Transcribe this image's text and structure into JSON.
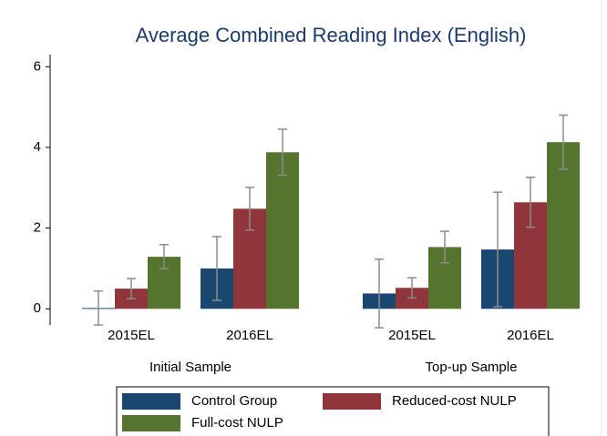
{
  "chart_data": {
    "type": "bar",
    "title": "Average Combined Reading Index (English)",
    "groups": [
      {
        "name": "Initial Sample",
        "categories": [
          "2015EL",
          "2016EL"
        ]
      },
      {
        "name": "Top-up Sample",
        "categories": [
          "2015EL",
          "2016EL"
        ]
      }
    ],
    "series": [
      {
        "name": "Control Group",
        "color": "#1a476f",
        "values": [
          0.02,
          1.0,
          0.38,
          1.47
        ],
        "errors": [
          0.42,
          0.79,
          0.85,
          1.42
        ]
      },
      {
        "name": "Reduced-cost NULP",
        "color": "#90353b",
        "values": [
          0.5,
          2.48,
          0.52,
          2.64
        ],
        "errors": [
          0.25,
          0.53,
          0.25,
          0.62
        ]
      },
      {
        "name": "Full-cost NULP",
        "color": "#55752f",
        "values": [
          1.29,
          3.88,
          1.53,
          4.13
        ],
        "errors": [
          0.3,
          0.57,
          0.39,
          0.67
        ]
      }
    ],
    "ylim": [
      -0.4,
      6.3
    ],
    "yticks": [
      0,
      2,
      4,
      6
    ],
    "error_color": "#8c8c8c"
  }
}
